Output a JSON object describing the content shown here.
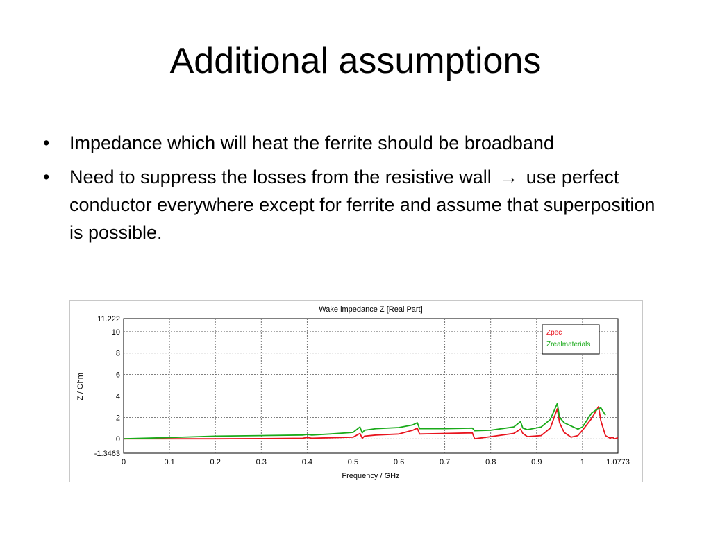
{
  "slide": {
    "title": "Additional assumptions",
    "bullets": [
      {
        "text": "Impedance which will heat the ferrite should be broadband"
      },
      {
        "text_before": "Need to suppress the losses from the resistive wall",
        "arrow": "→",
        "text_after": "use perfect conductor everywhere except for ferrite and assume that superposition is possible."
      }
    ],
    "bullet_glyph": "•"
  },
  "chart_data": {
    "type": "line",
    "title": "Wake impedance Z [Real Part]",
    "xlabel": "Frequency / GHz",
    "ylabel": "Z / Ohm",
    "xlim": [
      0,
      1.0773
    ],
    "ylim": [
      -1.3463,
      11.222
    ],
    "x_ticks": [
      "0",
      "0.1",
      "0.2",
      "0.3",
      "0.4",
      "0.5",
      "0.6",
      "0.7",
      "0.8",
      "0.9",
      "1",
      "1.0773"
    ],
    "y_ticks": [
      "11.222",
      "10",
      "8",
      "6",
      "4",
      "2",
      "0",
      "-1.3463"
    ],
    "grid": true,
    "legend": "top-right",
    "series": [
      {
        "name": "Zpec",
        "color": "#e8141e",
        "x": [
          0,
          0.1,
          0.2,
          0.3,
          0.39,
          0.4,
          0.41,
          0.45,
          0.5,
          0.515,
          0.52,
          0.525,
          0.55,
          0.6,
          0.63,
          0.64,
          0.645,
          0.7,
          0.76,
          0.765,
          0.8,
          0.85,
          0.865,
          0.87,
          0.88,
          0.91,
          0.93,
          0.945,
          0.95,
          0.96,
          0.975,
          0.99,
          1.0,
          1.02,
          1.035,
          1.04,
          1.05,
          1.06,
          1.065,
          1.07,
          1.0773
        ],
        "values": [
          0,
          0,
          0,
          0.02,
          0.05,
          0.12,
          0.05,
          0.1,
          0.15,
          0.5,
          0.05,
          0.25,
          0.35,
          0.45,
          0.8,
          1.0,
          0.45,
          0.5,
          0.55,
          0,
          0.2,
          0.5,
          0.9,
          0.5,
          0.2,
          0.3,
          1.0,
          2.8,
          1.5,
          0.6,
          0.15,
          0.3,
          0.8,
          1.9,
          3.0,
          1.7,
          0.3,
          0.05,
          0.15,
          0,
          0.1
        ]
      },
      {
        "name": "Zrealmaterials",
        "color": "#1aaa1a",
        "x": [
          0,
          0.1,
          0.2,
          0.3,
          0.39,
          0.4,
          0.41,
          0.45,
          0.5,
          0.515,
          0.52,
          0.525,
          0.55,
          0.6,
          0.63,
          0.64,
          0.645,
          0.7,
          0.76,
          0.765,
          0.8,
          0.85,
          0.865,
          0.87,
          0.88,
          0.91,
          0.93,
          0.945,
          0.95,
          0.96,
          0.975,
          0.99,
          1.0,
          1.02,
          1.03,
          1.04,
          1.05
        ],
        "values": [
          0,
          0.12,
          0.25,
          0.3,
          0.35,
          0.4,
          0.35,
          0.45,
          0.6,
          1.1,
          0.55,
          0.8,
          0.95,
          1.05,
          1.3,
          1.5,
          0.95,
          0.95,
          1.0,
          0.75,
          0.8,
          1.1,
          1.6,
          1.0,
          0.85,
          1.1,
          1.8,
          3.3,
          2.0,
          1.5,
          1.2,
          0.9,
          1.1,
          2.4,
          2.7,
          2.9,
          2.2
        ]
      }
    ]
  }
}
